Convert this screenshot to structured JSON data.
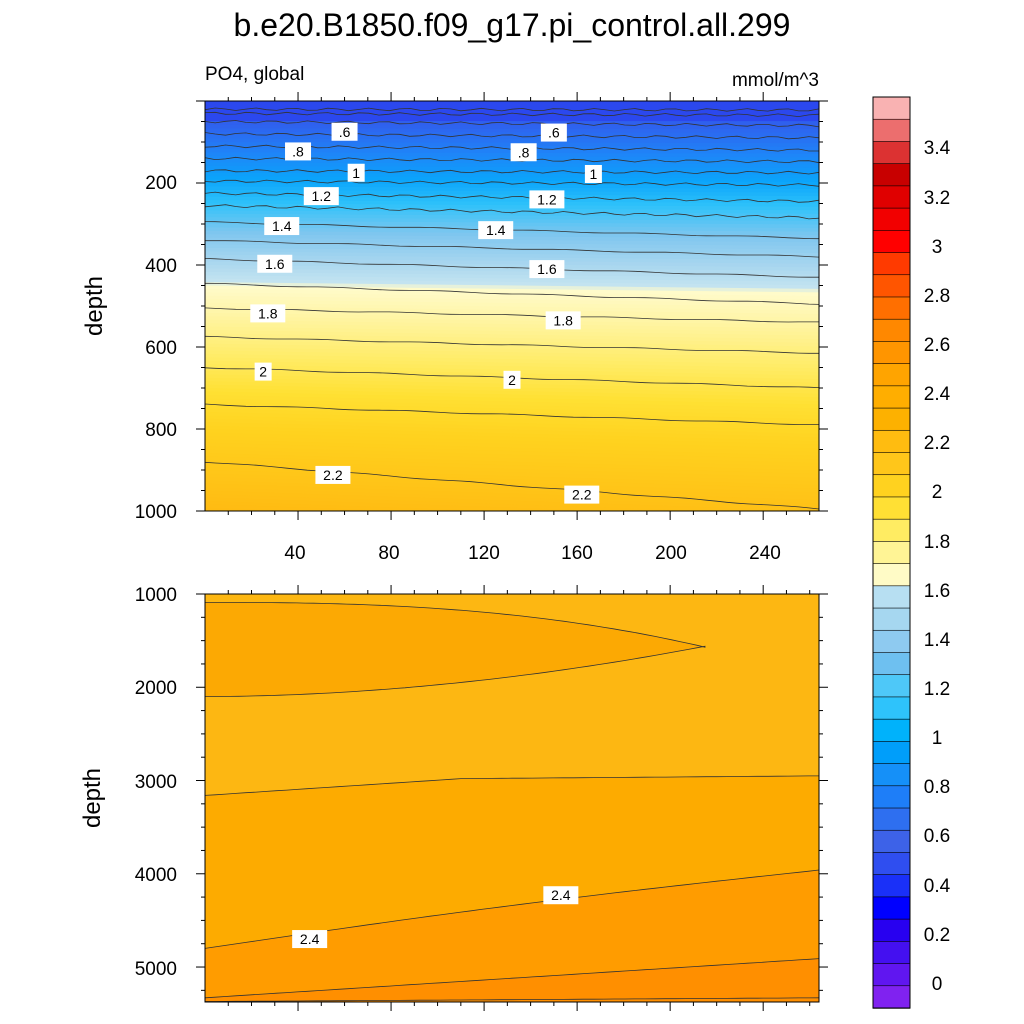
{
  "title": "b.e20.B1850.f09_g17.pi_control.all.299",
  "chart_data": [
    {
      "type": "contour",
      "panel": "upper",
      "variable_label": "PO4, global",
      "units_label": "mmol/m^3",
      "xlabel": "",
      "ylabel": "depth",
      "xlim": [
        0,
        264
      ],
      "ylim": [
        0,
        1000
      ],
      "y_inverted": true,
      "x_ticks": [
        "40",
        "80",
        "120",
        "160",
        "200",
        "240"
      ],
      "y_ticks": [
        "200",
        "400",
        "600",
        "800",
        "1000"
      ],
      "contour_lines": [
        {
          "level": 0.6,
          "depth_left": 50,
          "depth_right": 60
        },
        {
          "level": 0.8,
          "depth_left": 110,
          "depth_right": 120
        },
        {
          "level": 1.0,
          "depth_left": 170,
          "depth_right": 175
        },
        {
          "level": 1.2,
          "depth_left": 225,
          "depth_right": 245
        },
        {
          "level": 1.4,
          "depth_left": 295,
          "depth_right": 335
        },
        {
          "level": 1.6,
          "depth_left": 385,
          "depth_right": 430
        },
        {
          "level": 1.8,
          "depth_left": 505,
          "depth_right": 540
        },
        {
          "level": 2.0,
          "depth_left": 650,
          "depth_right": 700
        },
        {
          "level": 2.2,
          "depth_left": 880,
          "depth_right": 995
        }
      ],
      "contour_labels": [
        {
          "text": ".6",
          "x": 60,
          "depth": 75
        },
        {
          "text": ".6",
          "x": 150,
          "depth": 77
        },
        {
          "text": ".8",
          "x": 40,
          "depth": 123
        },
        {
          "text": ".8",
          "x": 137,
          "depth": 125
        },
        {
          "text": "1",
          "x": 65,
          "depth": 175
        },
        {
          "text": "1",
          "x": 167,
          "depth": 178
        },
        {
          "text": "1.2",
          "x": 50,
          "depth": 232
        },
        {
          "text": "1.2",
          "x": 147,
          "depth": 240
        },
        {
          "text": "1.4",
          "x": 33,
          "depth": 305
        },
        {
          "text": "1.4",
          "x": 125,
          "depth": 315
        },
        {
          "text": "1.6",
          "x": 30,
          "depth": 397
        },
        {
          "text": "1.6",
          "x": 147,
          "depth": 410
        },
        {
          "text": "1.8",
          "x": 27,
          "depth": 518
        },
        {
          "text": "1.8",
          "x": 154,
          "depth": 535
        },
        {
          "text": "2",
          "x": 25,
          "depth": 660
        },
        {
          "text": "2",
          "x": 132,
          "depth": 680
        },
        {
          "text": "2.2",
          "x": 55,
          "depth": 912
        },
        {
          "text": "2.2",
          "x": 162,
          "depth": 960
        }
      ]
    },
    {
      "type": "contour",
      "panel": "lower",
      "xlabel": "",
      "ylabel": "depth",
      "xlim": [
        0,
        264
      ],
      "ylim": [
        1000,
        5375
      ],
      "y_inverted": true,
      "y_ticks": [
        "1000",
        "2000",
        "3000",
        "4000",
        "5000"
      ],
      "contour_labels": [
        {
          "text": "2.4",
          "x": 153,
          "depth": 4230
        },
        {
          "text": "2.4",
          "x": 45,
          "depth": 4700
        }
      ]
    }
  ],
  "colorbar": {
    "tick_labels": [
      "3.4",
      "3.2",
      "3",
      "2.8",
      "2.6",
      "2.4",
      "2.2",
      "2",
      "1.8",
      "1.6",
      "1.4",
      "1.2",
      "1",
      "0.8",
      "0.6",
      "0.4",
      "0.2",
      "0"
    ],
    "colors_top_to_bottom": [
      "#f9b2b2",
      "#ec6e6e",
      "#dc3232",
      "#c80000",
      "#e00000",
      "#f20000",
      "#ff0000",
      "#ff3a00",
      "#ff5500",
      "#ff6f00",
      "#ff8800",
      "#ff9500",
      "#ffa400",
      "#ffae00",
      "#fdb100",
      "#ffbc10",
      "#ffc61a",
      "#ffd21f",
      "#ffe034",
      "#ffec62",
      "#fff495",
      "#fffbc6",
      "#b7dff2",
      "#a6d7f0",
      "#8ecaf0",
      "#6ec0f0",
      "#4ec8f8",
      "#2ec3fb",
      "#00b2fb",
      "#009efa",
      "#1590f8",
      "#1e7ef8",
      "#2e6ff0",
      "#3d62e8",
      "#2f4ef0",
      "#1a30f8",
      "#0000ff",
      "#2800f0",
      "#4410f0",
      "#6016f0",
      "#8022f0"
    ]
  }
}
